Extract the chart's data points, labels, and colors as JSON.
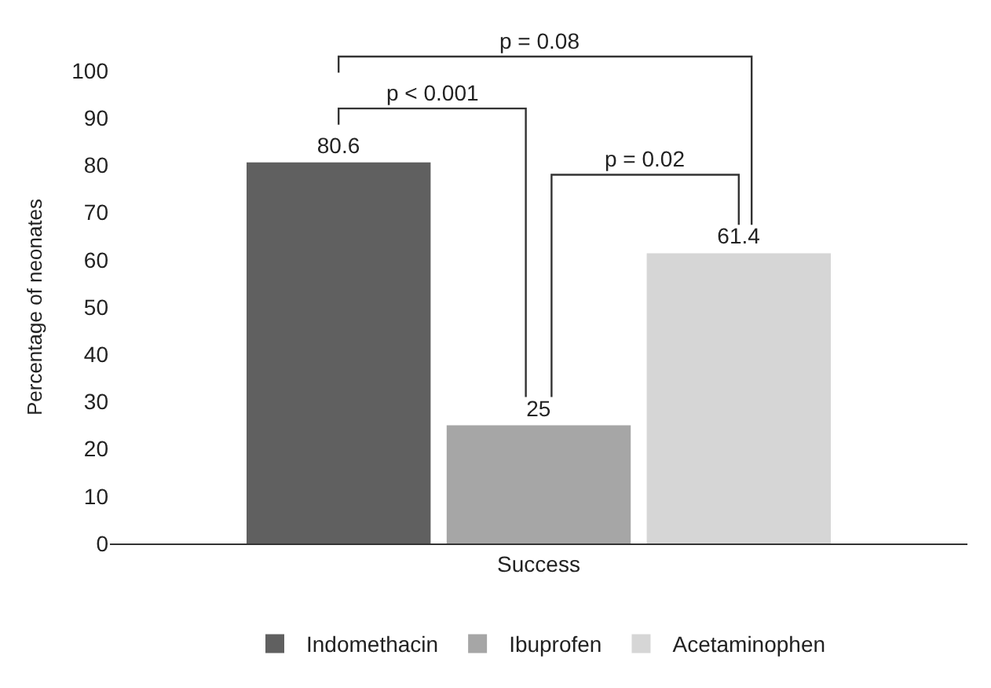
{
  "chart_data": {
    "type": "bar",
    "ylabel": "Percentage of neonates",
    "categories": [
      "Success"
    ],
    "series": [
      {
        "name": "Indomethacin",
        "color": "#606060",
        "values": [
          80.6
        ]
      },
      {
        "name": "Ibuprofen",
        "color": "#a6a6a6",
        "values": [
          25
        ]
      },
      {
        "name": "Acetaminophen",
        "color": "#d6d6d6",
        "values": [
          61.4
        ]
      }
    ],
    "ylim": [
      0,
      100
    ],
    "yticks": [
      0,
      10,
      20,
      30,
      40,
      50,
      60,
      70,
      80,
      90,
      100
    ],
    "data_labels": true,
    "legend": "bottom",
    "grid": false,
    "annotations": [
      "p = 0.08",
      "p < 0.001",
      "p = 0.02"
    ]
  }
}
